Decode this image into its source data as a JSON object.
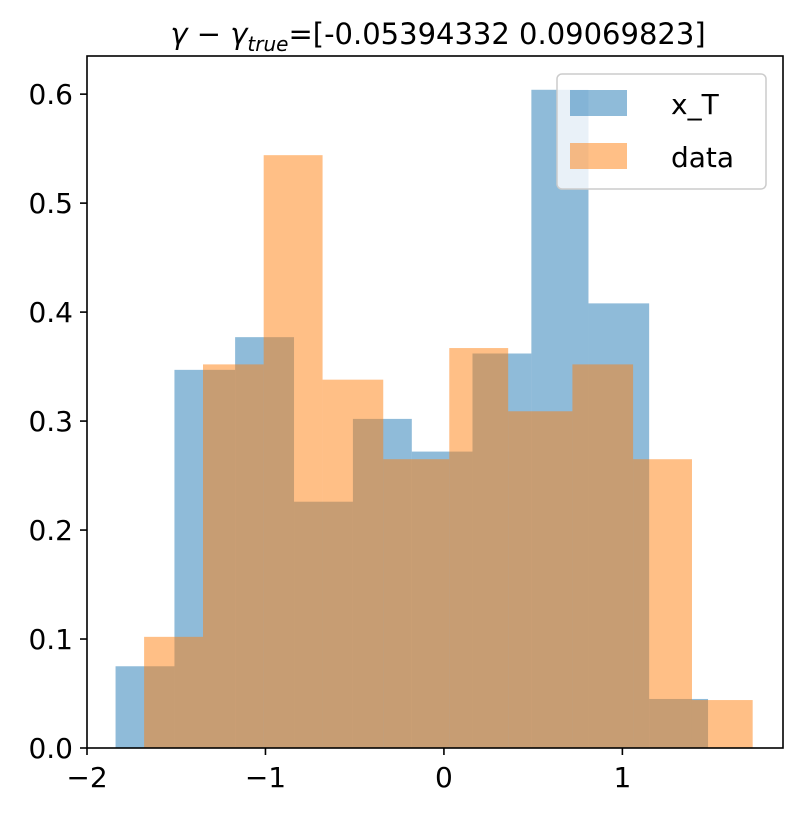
{
  "chart_data": {
    "type": "bar",
    "title_prefix": "γ − γ",
    "title_subscript": "true",
    "title_suffix": "=[-0.05394332  0.09069823]",
    "xlim": [
      -2.0,
      1.9
    ],
    "ylim": [
      0.0,
      0.635
    ],
    "xticks": [
      -2,
      -1,
      0,
      1
    ],
    "xtick_labels": [
      "−2",
      "−1",
      "0",
      "1"
    ],
    "yticks": [
      0.0,
      0.1,
      0.2,
      0.3,
      0.4,
      0.5,
      0.6
    ],
    "ytick_labels": [
      "0.0",
      "0.1",
      "0.2",
      "0.3",
      "0.4",
      "0.5",
      "0.6"
    ],
    "legend_position": "upper right",
    "alpha": 0.5,
    "series": [
      {
        "name": "x_T",
        "color": "#1f77b4",
        "bin_edges": [
          -1.84,
          -1.51,
          -1.17,
          -0.84,
          -0.51,
          -0.18,
          0.16,
          0.49,
          0.81,
          1.15,
          1.48
        ],
        "values": [
          0.075,
          0.347,
          0.377,
          0.226,
          0.302,
          0.272,
          0.362,
          0.604,
          0.408,
          0.045
        ]
      },
      {
        "name": "data",
        "color": "#ff7f0e",
        "bin_edges": [
          -1.68,
          -1.35,
          -1.01,
          -0.68,
          -0.34,
          0.03,
          0.36,
          0.72,
          1.06,
          1.39,
          1.73
        ],
        "values": [
          0.102,
          0.352,
          0.544,
          0.338,
          0.265,
          0.367,
          0.309,
          0.352,
          0.265,
          0.044
        ]
      }
    ]
  }
}
